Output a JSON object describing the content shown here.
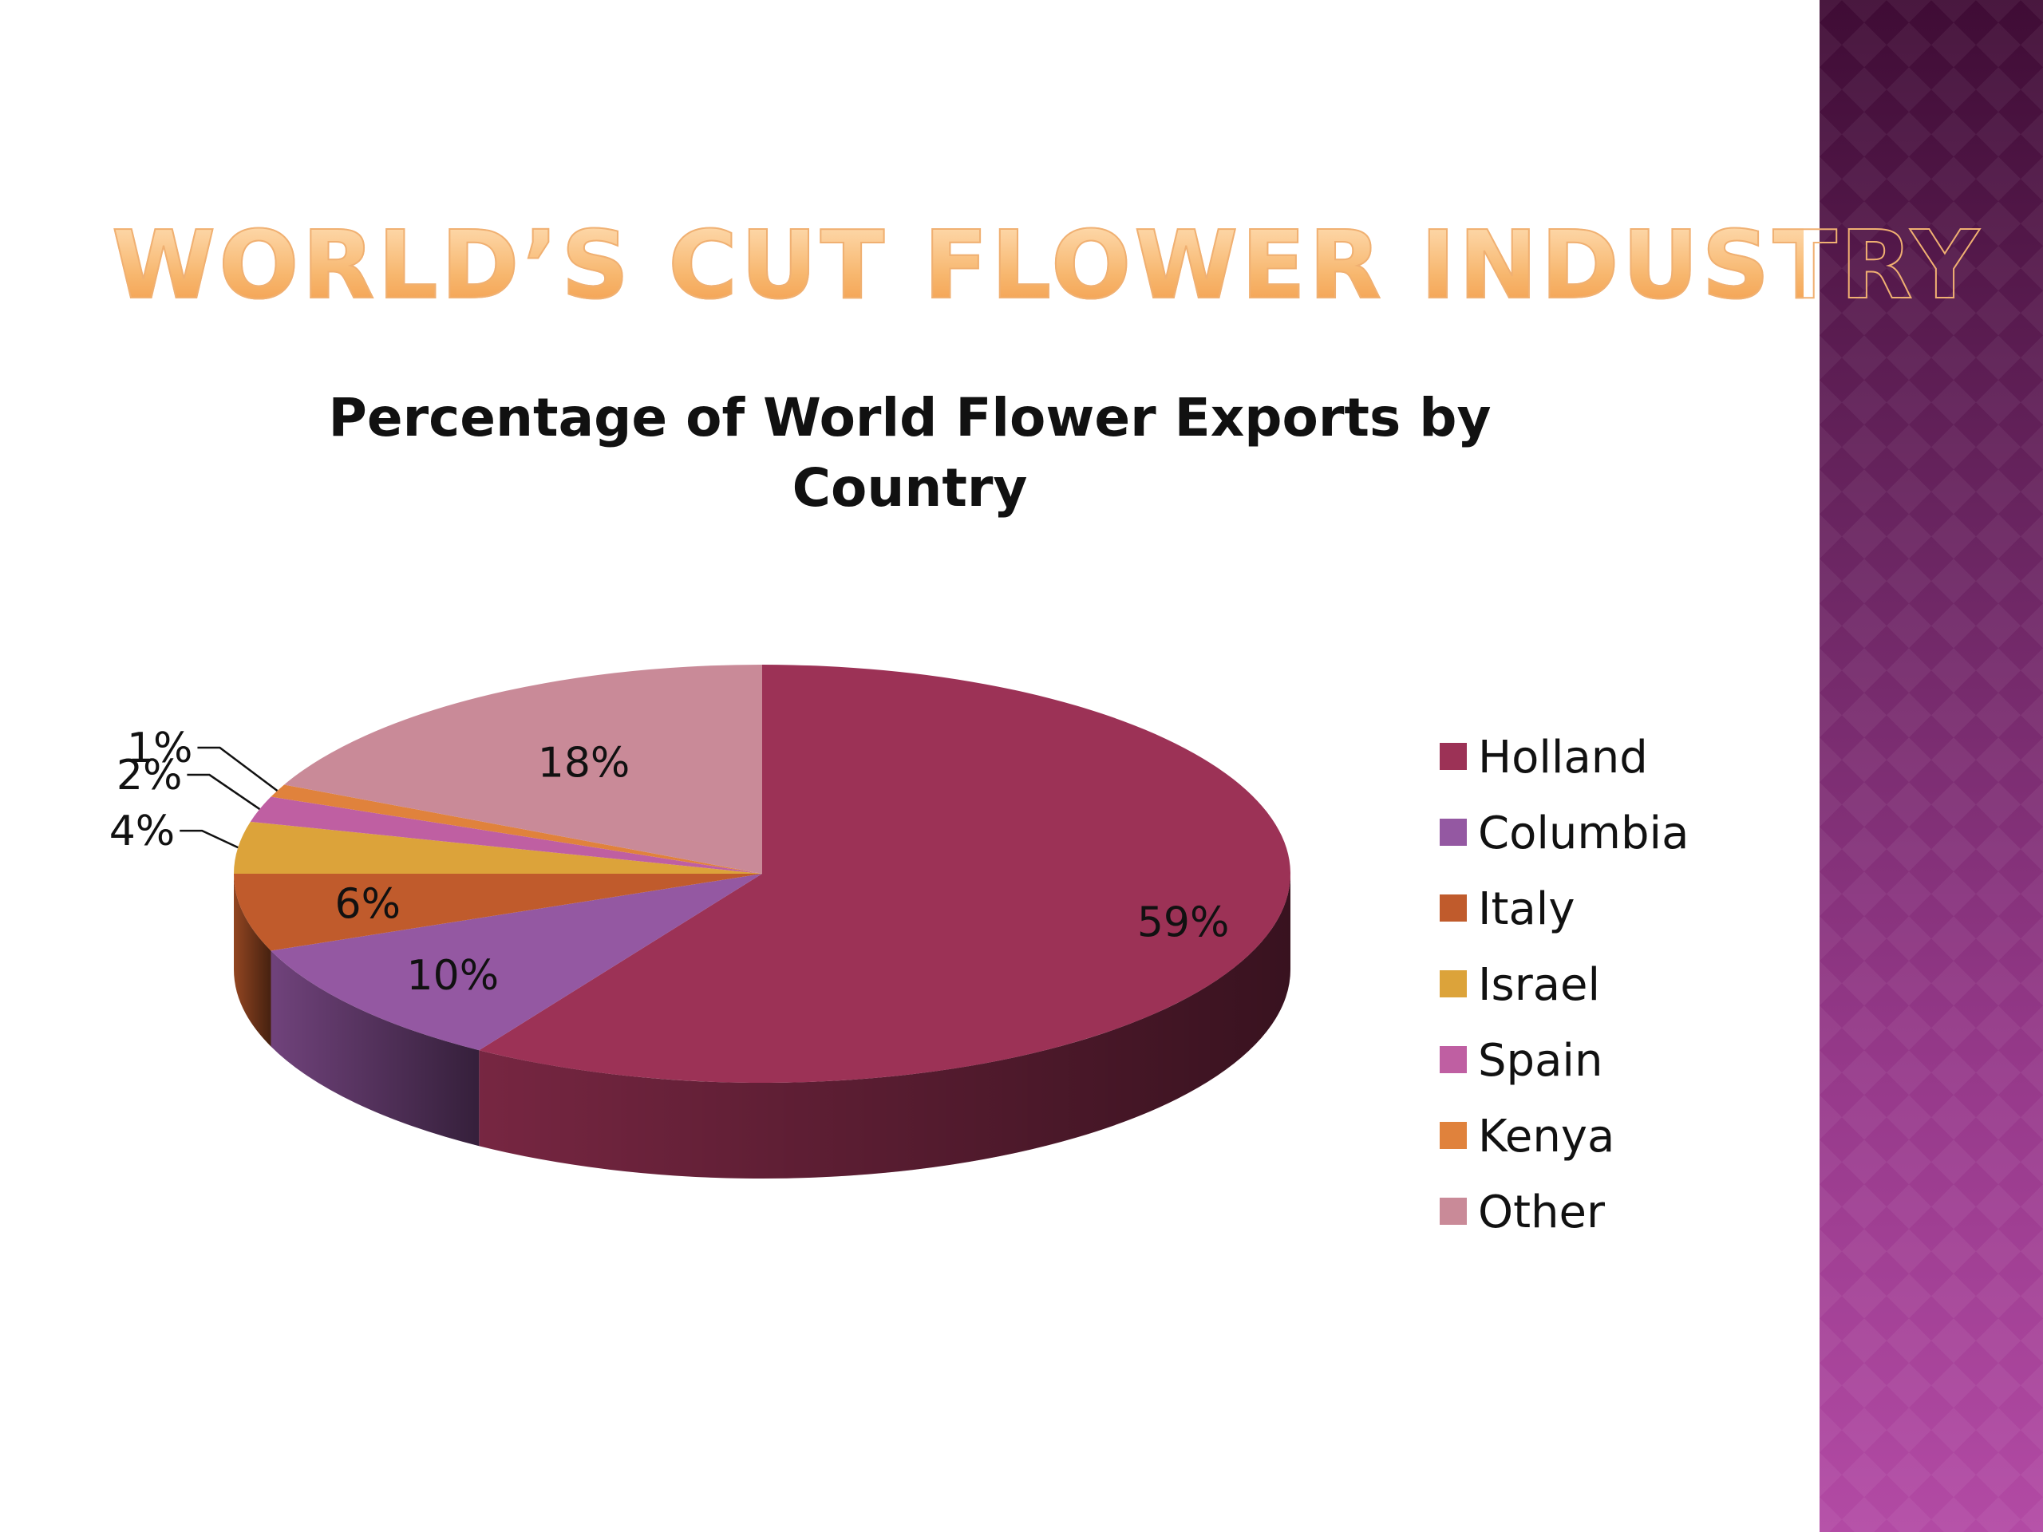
{
  "slide": {
    "title": "WORLD’S CUT FLOWER INDUSTRY"
  },
  "colors": {
    "side_panel_top": "#3f0c35",
    "side_panel_bottom": "#b24aa4",
    "title_text": "#f6b26b"
  },
  "chart_data": {
    "type": "pie",
    "title": "Percentage of World Flower Exports by Country",
    "title_lines": [
      "Percentage of World Flower Exports by",
      "Country"
    ],
    "style": "3d",
    "legend_position": "right",
    "categories": [
      "Holland",
      "Columbia",
      "Italy",
      "Israel",
      "Spain",
      "Kenya",
      "Other"
    ],
    "values": [
      59,
      10,
      6,
      4,
      2,
      1,
      18
    ],
    "labels": [
      "59%",
      "10%",
      "6%",
      "4%",
      "2%",
      "1%",
      "18%"
    ],
    "colors": [
      "#9c3256",
      "#9458a2",
      "#c05b2c",
      "#dca33a",
      "#bf5fa2",
      "#e0823c",
      "#c98a98"
    ]
  }
}
